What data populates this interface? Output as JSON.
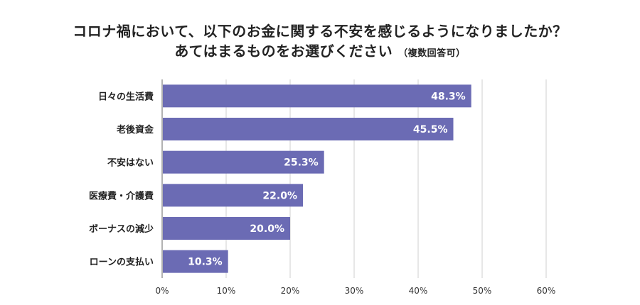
{
  "chart_data": {
    "type": "bar",
    "orientation": "horizontal",
    "title": "コロナ禍において、以下のお金に関する不安を感じるようになりましたか？",
    "subtitle": "あてはまるものをお選びください",
    "subtitle_note": "（複数回答可）",
    "categories": [
      "日々の生活費",
      "老後資金",
      "不安はない",
      "医療費・介護費",
      "ボーナスの減少",
      "ローンの支払い"
    ],
    "values": [
      48.3,
      45.5,
      25.3,
      22.0,
      20.0,
      10.3
    ],
    "value_labels": [
      "48.3%",
      "45.5%",
      "25.3%",
      "22.0%",
      "20.0%",
      "10.3%"
    ],
    "xlim": [
      0,
      60
    ],
    "xticks": [
      "0%",
      "10%",
      "20%",
      "30%",
      "40%",
      "50%",
      "60%"
    ],
    "grid": true,
    "bar_color": "#6b6bb4",
    "value_label_color": "#ffffff"
  }
}
